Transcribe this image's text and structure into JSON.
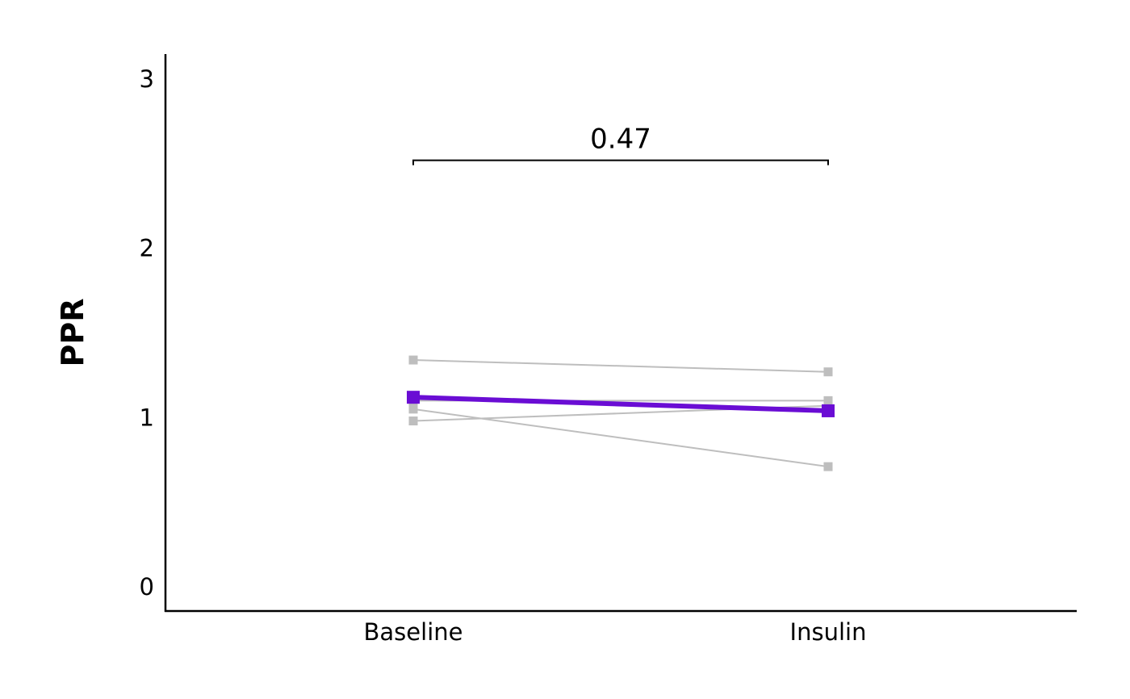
{
  "chart_data": {
    "type": "line",
    "categories": [
      "Baseline",
      "Insulin"
    ],
    "ylabel": "PPR",
    "xlabel": "",
    "ylim": [
      0,
      3.15
    ],
    "yticks": [
      "0",
      "1",
      "2",
      "3"
    ],
    "grid": false,
    "legend": "none",
    "series": [
      {
        "values": [
          1.34,
          1.27
        ],
        "color": "#bebebe",
        "role": "individual"
      },
      {
        "values": [
          1.1,
          1.1
        ],
        "color": "#bebebe",
        "role": "individual"
      },
      {
        "values": [
          1.05,
          0.71
        ],
        "color": "#bebebe",
        "role": "individual"
      },
      {
        "values": [
          0.98,
          1.07
        ],
        "color": "#bebebe",
        "role": "individual"
      },
      {
        "values": [
          1.12,
          1.04
        ],
        "color": "#6a0dd4",
        "role": "mean"
      }
    ],
    "annotation": {
      "text": "0.47",
      "y": 2.52
    }
  }
}
